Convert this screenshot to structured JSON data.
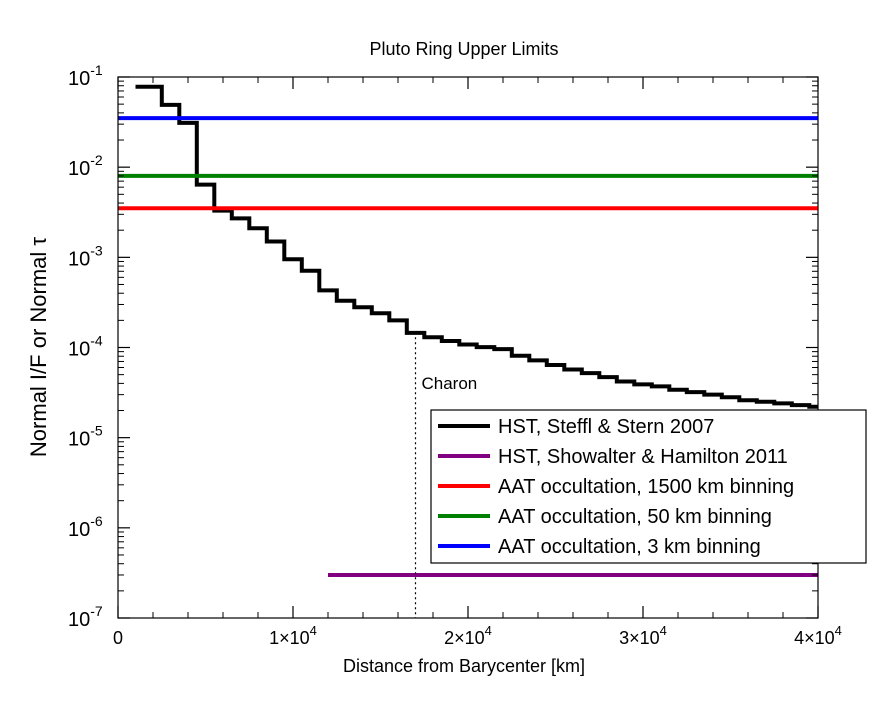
{
  "chart_data": {
    "type": "line",
    "title": "Pluto Ring Upper Limits",
    "xlabel": "Distance from Barycenter [km]",
    "ylabel": "Normal I/F   or   Normal τ",
    "xlim": [
      0,
      40000
    ],
    "ylim": [
      1e-07,
      0.1
    ],
    "yscale": "log",
    "x_ticks": [
      {
        "value": 0,
        "label": "0",
        "mant": "",
        "exp": ""
      },
      {
        "value": 10000,
        "label": "",
        "mant": "1×10",
        "exp": "4"
      },
      {
        "value": 20000,
        "label": "",
        "mant": "2×10",
        "exp": "4"
      },
      {
        "value": 30000,
        "label": "",
        "mant": "3×10",
        "exp": "4"
      },
      {
        "value": 40000,
        "label": "",
        "mant": "4×10",
        "exp": "4"
      }
    ],
    "y_ticks": [
      {
        "value": 1e-07,
        "base": "10",
        "exp": "-7"
      },
      {
        "value": 1e-06,
        "base": "10",
        "exp": "-6"
      },
      {
        "value": 1e-05,
        "base": "10",
        "exp": "-5"
      },
      {
        "value": 0.0001,
        "base": "10",
        "exp": "-4"
      },
      {
        "value": 0.001,
        "base": "10",
        "exp": "-3"
      },
      {
        "value": 0.01,
        "base": "10",
        "exp": "-2"
      },
      {
        "value": 0.1,
        "base": "10",
        "exp": "-1"
      }
    ],
    "series": [
      {
        "name": "HST, Steffl & Stern 2007",
        "color": "#000000",
        "style": "step",
        "x": [
          1000,
          2500,
          3500,
          4500,
          5500,
          6500,
          7500,
          8500,
          9500,
          10500,
          11500,
          12500,
          13500,
          14500,
          15500,
          16500,
          17500,
          18500,
          19500,
          20500,
          21500,
          22500,
          23500,
          24500,
          25500,
          26500,
          27500,
          28500,
          29500,
          30500,
          31500,
          32500,
          33500,
          34500,
          35500,
          36500,
          37500,
          38500,
          39500,
          40000
        ],
        "values": [
          0.078,
          0.049,
          0.031,
          0.0064,
          0.0033,
          0.0027,
          0.0021,
          0.0015,
          0.00095,
          0.00071,
          0.00043,
          0.00033,
          0.00028,
          0.00024,
          0.0002,
          0.000145,
          0.00013,
          0.000118,
          0.000108,
          0.000101,
          9.6e-05,
          8.1e-05,
          7.2e-05,
          6.4e-05,
          5.7e-05,
          5.2e-05,
          4.7e-05,
          4.2e-05,
          3.9e-05,
          3.7e-05,
          3.4e-05,
          3.2e-05,
          3e-05,
          2.8e-05,
          2.6e-05,
          2.5e-05,
          2.4e-05,
          2.3e-05,
          2.2e-05,
          2.2e-05
        ]
      },
      {
        "name": "HST, Showalter & Hamilton 2011",
        "color": "#800080",
        "style": "hline",
        "x": [
          12000,
          40000
        ],
        "value": 3e-07
      },
      {
        "name": "AAT occultation, 1500 km binning",
        "color": "#ff0000",
        "style": "hline",
        "x": [
          0,
          40000
        ],
        "value": 0.0035
      },
      {
        "name": "AAT occultation, 50 km binning",
        "color": "#008000",
        "style": "hline",
        "x": [
          0,
          40000
        ],
        "value": 0.008
      },
      {
        "name": "AAT occultation, 3 km binning",
        "color": "#0000ff",
        "style": "hline",
        "x": [
          0,
          40000
        ],
        "value": 0.035
      }
    ],
    "annotations": [
      {
        "text": "Charon",
        "x": 17000,
        "y_top": 0.00013,
        "style": "dotted-vertical"
      }
    ],
    "legend_position": "bottom-right"
  }
}
